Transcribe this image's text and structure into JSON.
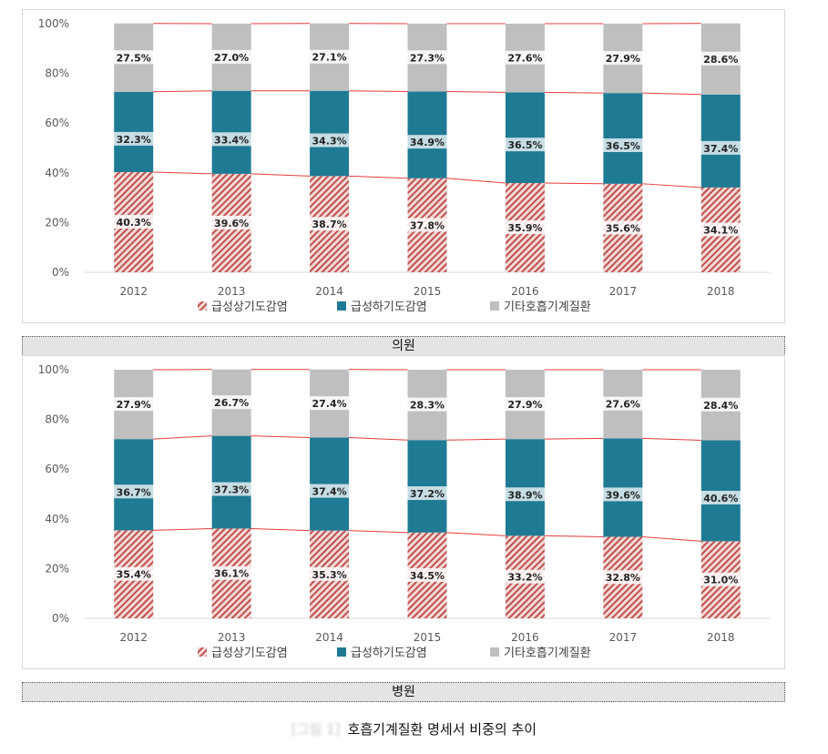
{
  "figure": {
    "caption_prefix": "[그림 1]",
    "caption": "호흡기계질환 명세서 비중의 추이"
  },
  "colors": {
    "acute_upper": "#c0504d",
    "acute_lower": "#1f7a94",
    "other": "#bfbfbf",
    "trend_line": "#e83c3c"
  },
  "chart_data": [
    {
      "type": "bar",
      "stacked": true,
      "panel_label": "의원",
      "categories": [
        "2012",
        "2013",
        "2014",
        "2015",
        "2016",
        "2017",
        "2018"
      ],
      "series": [
        {
          "name": "급성상기도감염",
          "values": [
            40.3,
            39.6,
            38.7,
            37.8,
            35.9,
            35.6,
            34.1
          ],
          "labels": [
            "40.3%",
            "39.6%",
            "38.7%",
            "37.8%",
            "35.9%",
            "35.6%",
            "34.1%"
          ]
        },
        {
          "name": "급성하기도감염",
          "values": [
            32.3,
            33.4,
            34.3,
            34.9,
            36.5,
            36.5,
            37.4
          ],
          "labels": [
            "32.3%",
            "33.4%",
            "34.3%",
            "34.9%",
            "36.5%",
            "36.5%",
            "37.4%"
          ]
        },
        {
          "name": "기타호흡기계질환",
          "values": [
            27.5,
            27.0,
            27.1,
            27.3,
            27.6,
            27.9,
            28.6
          ],
          "labels": [
            "27.5%",
            "27.0%",
            "27.1%",
            "27.3%",
            "27.6%",
            "27.9%",
            "28.6%"
          ]
        }
      ],
      "yticks": [
        "0%",
        "20%",
        "40%",
        "60%",
        "80%",
        "100%"
      ],
      "ylim": [
        0,
        100
      ],
      "legend_position": "bottom",
      "series_lines": true
    },
    {
      "type": "bar",
      "stacked": true,
      "panel_label": "병원",
      "categories": [
        "2012",
        "2013",
        "2014",
        "2015",
        "2016",
        "2017",
        "2018"
      ],
      "series": [
        {
          "name": "급성상기도감염",
          "values": [
            35.4,
            36.1,
            35.3,
            34.5,
            33.2,
            32.8,
            31.0
          ],
          "labels": [
            "35.4%",
            "36.1%",
            "35.3%",
            "34.5%",
            "33.2%",
            "32.8%",
            "31.0%"
          ]
        },
        {
          "name": "급성하기도감염",
          "values": [
            36.7,
            37.3,
            37.4,
            37.2,
            38.9,
            39.6,
            40.6
          ],
          "labels": [
            "36.7%",
            "37.3%",
            "37.4%",
            "37.2%",
            "38.9%",
            "39.6%",
            "40.6%"
          ]
        },
        {
          "name": "기타호흡기계질환",
          "values": [
            27.9,
            26.7,
            27.4,
            28.3,
            27.9,
            27.6,
            28.4
          ],
          "labels": [
            "27.9%",
            "26.7%",
            "27.4%",
            "28.3%",
            "27.9%",
            "27.6%",
            "28.4%"
          ]
        }
      ],
      "yticks": [
        "0%",
        "20%",
        "40%",
        "60%",
        "80%",
        "100%"
      ],
      "ylim": [
        0,
        100
      ],
      "legend_position": "bottom",
      "series_lines": true
    }
  ]
}
